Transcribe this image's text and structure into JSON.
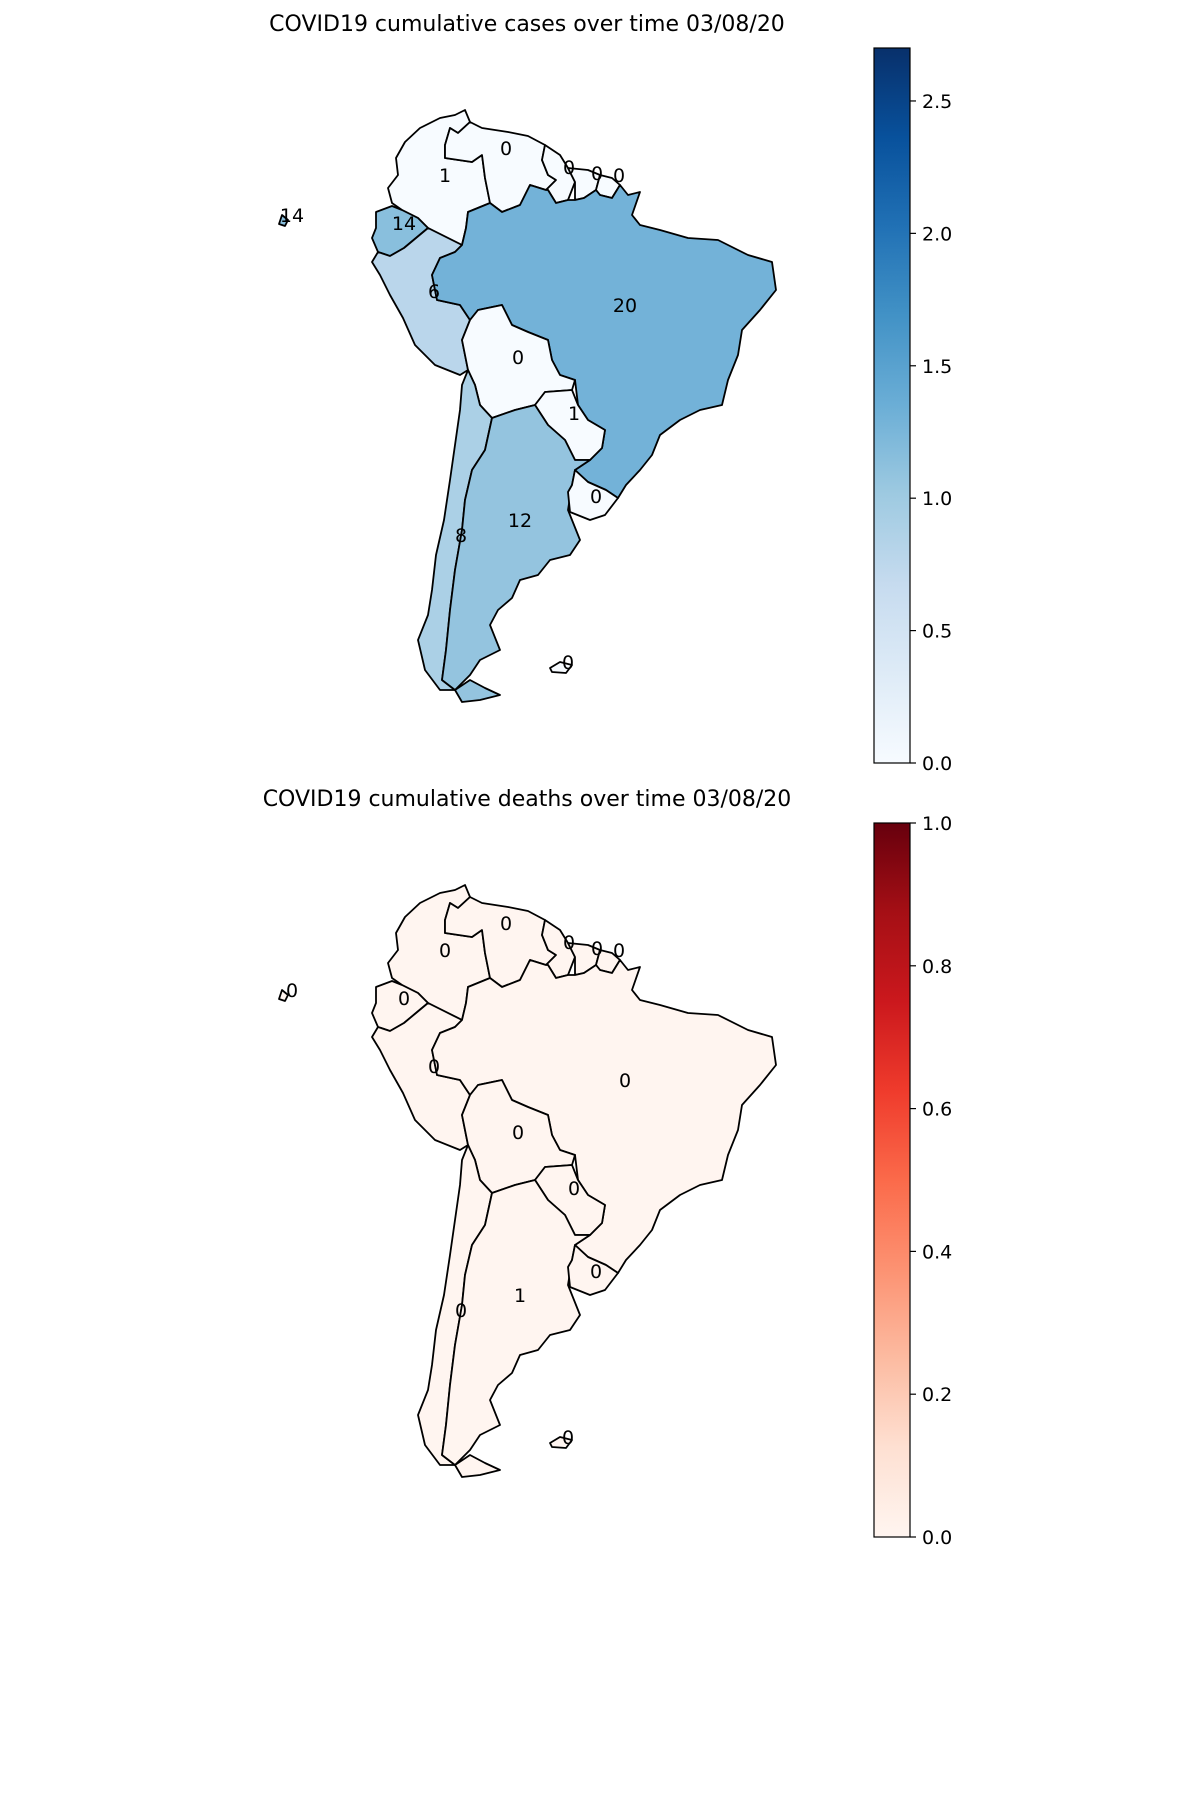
{
  "chart_data": [
    {
      "type": "choropleth",
      "title": "COVID19 cumulative cases over time 03/08/20",
      "colormap": "Blues",
      "colorbar": {
        "min": 0.0,
        "max": 2.7,
        "ticks": [
          "0.0",
          "0.5",
          "1.0",
          "1.5",
          "2.0",
          "2.5"
        ]
      },
      "countries": [
        {
          "id": "colombia",
          "label": "1",
          "shade": 0.0
        },
        {
          "id": "venezuela",
          "label": "0",
          "shade": 0.0
        },
        {
          "id": "guyana",
          "label": "0",
          "shade": 0.0
        },
        {
          "id": "suriname",
          "label": "0",
          "shade": 0.0
        },
        {
          "id": "french-guiana",
          "label": "0",
          "shade": 0.0
        },
        {
          "id": "ecuador",
          "label": "14",
          "shade": 1.15
        },
        {
          "id": "galapagos",
          "label": "14",
          "shade": 1.15
        },
        {
          "id": "peru",
          "label": "6",
          "shade": 0.78
        },
        {
          "id": "brazil",
          "label": "20",
          "shade": 1.3
        },
        {
          "id": "bolivia",
          "label": "0",
          "shade": 0.0
        },
        {
          "id": "paraguay",
          "label": "1",
          "shade": 0.0
        },
        {
          "id": "chile",
          "label": "8",
          "shade": 0.9
        },
        {
          "id": "argentina",
          "label": "12",
          "shade": 1.08
        },
        {
          "id": "uruguay",
          "label": "0",
          "shade": 0.0
        },
        {
          "id": "falklands",
          "label": "0",
          "shade": 0.0
        },
        {
          "id": "tierra-del-fuego",
          "label": "",
          "shade": 1.08
        }
      ]
    },
    {
      "type": "choropleth",
      "title": "COVID19 cumulative deaths over time 03/08/20",
      "colormap": "Reds",
      "colorbar": {
        "min": 0.0,
        "max": 1.0,
        "ticks": [
          "0.0",
          "0.2",
          "0.4",
          "0.6",
          "0.8",
          "1.0"
        ]
      },
      "countries": [
        {
          "id": "colombia",
          "label": "0",
          "shade": 0.0
        },
        {
          "id": "venezuela",
          "label": "0",
          "shade": 0.0
        },
        {
          "id": "guyana",
          "label": "0",
          "shade": 0.0
        },
        {
          "id": "suriname",
          "label": "0",
          "shade": 0.0
        },
        {
          "id": "french-guiana",
          "label": "0",
          "shade": 0.0
        },
        {
          "id": "ecuador",
          "label": "0",
          "shade": 0.0
        },
        {
          "id": "galapagos",
          "label": "0",
          "shade": 0.0
        },
        {
          "id": "peru",
          "label": "0",
          "shade": 0.0
        },
        {
          "id": "brazil",
          "label": "0",
          "shade": 0.0
        },
        {
          "id": "bolivia",
          "label": "0",
          "shade": 0.0
        },
        {
          "id": "paraguay",
          "label": "0",
          "shade": 0.0
        },
        {
          "id": "chile",
          "label": "0",
          "shade": 0.0
        },
        {
          "id": "argentina",
          "label": "1",
          "shade": 0.0
        },
        {
          "id": "uruguay",
          "label": "0",
          "shade": 0.0
        },
        {
          "id": "falklands",
          "label": "0",
          "shade": 0.0
        },
        {
          "id": "tierra-del-fuego",
          "label": "",
          "shade": 0.0
        }
      ]
    }
  ]
}
